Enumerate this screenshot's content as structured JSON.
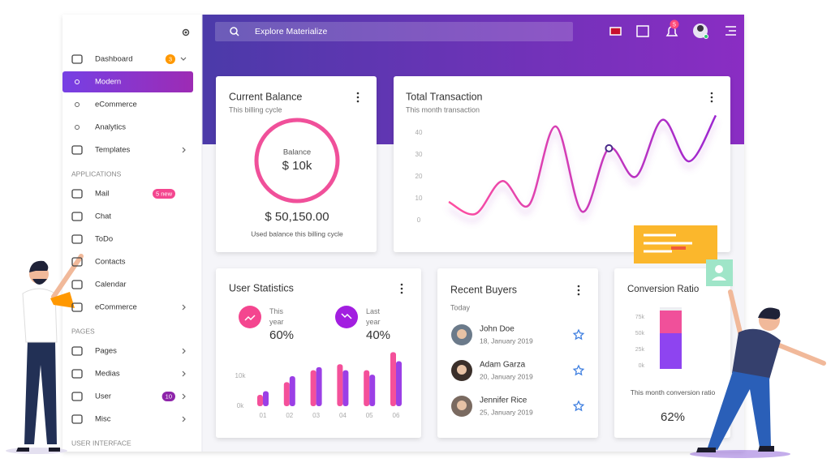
{
  "topbar": {
    "search_placeholder": "Explore Materialize",
    "notification_count": 5
  },
  "sidebar": {
    "groups": [
      {
        "items": [
          {
            "label": "Dashboard",
            "badge": 3,
            "badge_color": "#ff9800",
            "expandable": true,
            "children": [
              {
                "label": "Modern",
                "active": true
              },
              {
                "label": "eCommerce"
              },
              {
                "label": "Analytics"
              }
            ]
          },
          {
            "label": "Templates",
            "expandable": true
          }
        ]
      },
      {
        "heading": "APPLICATIONS",
        "items": [
          {
            "label": "Mail",
            "badge": "5 new",
            "badge_color": "#f4468f"
          },
          {
            "label": "Chat"
          },
          {
            "label": "ToDo"
          },
          {
            "label": "Contacts"
          },
          {
            "label": "Calendar"
          },
          {
            "label": "eCommerce",
            "expandable": true
          }
        ]
      },
      {
        "heading": "PAGES",
        "items": [
          {
            "label": "Pages",
            "expandable": true
          },
          {
            "label": "Medias",
            "expandable": true
          },
          {
            "label": "User",
            "badge": 10,
            "badge_color": "#8e24aa",
            "expandable": true
          },
          {
            "label": "Misc",
            "expandable": true
          }
        ]
      },
      {
        "heading": "USER INTERFACE",
        "items": []
      }
    ]
  },
  "current_balance": {
    "title": "Current Balance",
    "subtitle": "This billing cycle",
    "ring_label": "Balance",
    "ring_value": "$ 10k",
    "amount": "$ 50,150.00",
    "caption": "Used balance this billing cycle"
  },
  "total_transaction": {
    "title": "Total Transaction",
    "subtitle": "This month transaction",
    "chart": {
      "type": "line",
      "values": [
        8.5,
        3,
        18,
        7,
        43,
        4,
        33,
        20,
        46,
        27,
        48
      ],
      "ylim": [
        -3,
        50
      ],
      "yticks": [
        0,
        10,
        20,
        30,
        40
      ],
      "highlighted_point": 6,
      "colors": [
        "#ff4fa0",
        "#9c27d0"
      ]
    }
  },
  "user_statistics": {
    "title": "User Statistics",
    "stats": [
      {
        "label": "This year",
        "value": "60%",
        "color": "#f4468f"
      },
      {
        "label": "Last year",
        "value": "40%",
        "color": "#a21ee0"
      }
    ],
    "chart": {
      "type": "bar",
      "categories": [
        "01",
        "02",
        "03",
        "04",
        "05",
        "06"
      ],
      "series": [
        {
          "color": "#f4509a",
          "values": [
            3800,
            8000,
            12000,
            14000,
            12000,
            18000
          ]
        },
        {
          "color": "#9b3fe6",
          "values": [
            5000,
            10000,
            13000,
            12000,
            10500,
            15000
          ]
        }
      ],
      "ylim": [
        0,
        20000
      ],
      "yticks": [
        {
          "value": 0,
          "label": "0k"
        },
        {
          "value": 10000,
          "label": "10k"
        }
      ]
    }
  },
  "recent_buyers": {
    "title": "Recent Buyers",
    "subtitle": "Today",
    "buyers": [
      {
        "name": "John Doe",
        "date": "18, January 2019"
      },
      {
        "name": "Adam Garza",
        "date": "20, January 2019"
      },
      {
        "name": "Jennifer Rice",
        "date": "25, January 2019"
      }
    ]
  },
  "conversion_ratio": {
    "title": "Conversion Ratio",
    "chart": {
      "type": "stacked-bar",
      "series": [
        {
          "color": "#8e44f0",
          "values": [
            55000
          ]
        },
        {
          "color": "#f0509a",
          "values": [
            35000
          ]
        }
      ],
      "ylim": [
        0,
        95000
      ],
      "yticks": [
        {
          "value": 75000,
          "label": "75k"
        },
        {
          "value": 50000,
          "label": "50k"
        },
        {
          "value": 25000,
          "label": "25k"
        },
        {
          "value": 0,
          "label": "0k"
        }
      ]
    },
    "caption": "This month conversion ratio",
    "value": "62%"
  }
}
